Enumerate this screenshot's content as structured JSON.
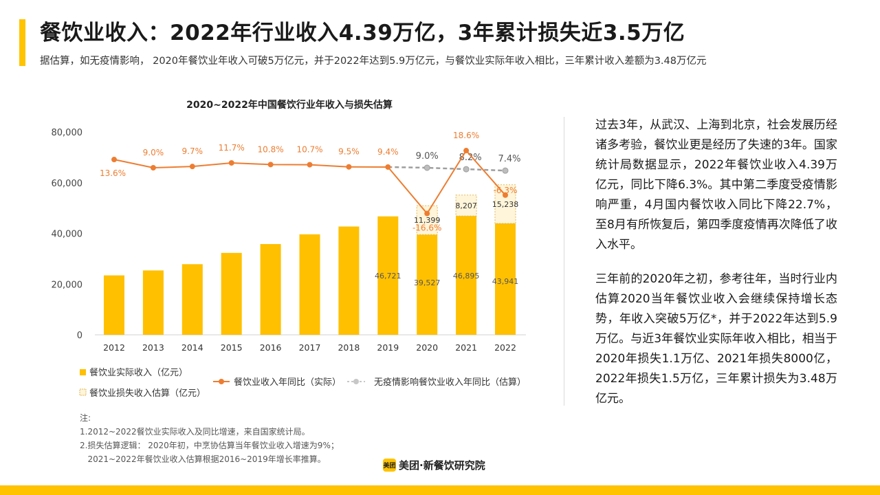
{
  "header": {
    "title": "餐饮业收入：2022年行业收入4.39万亿，3年累计损失近3.5万亿",
    "subtitle": "据估算，如无疫情影响， 2020年餐饮业年收入可破5万亿元，并于2022年达到5.9万亿元，与餐饮业实际年收入相比，三年累计收入差额为3.48万亿元"
  },
  "chart_data": {
    "type": "bar",
    "title": "2020~2022年中国餐饮行业年收入与损失估算",
    "categories": [
      "2012",
      "2013",
      "2014",
      "2015",
      "2016",
      "2017",
      "2018",
      "2019",
      "2020",
      "2021",
      "2022"
    ],
    "ylim": [
      0,
      80000
    ],
    "yticks": [
      0,
      20000,
      40000,
      60000,
      80000
    ],
    "ytick_labels": [
      "0",
      "20,000",
      "40,000",
      "60,000",
      "80,000"
    ],
    "series": [
      {
        "name": "餐饮业实际收入（亿元）",
        "kind": "bar",
        "values": [
          23448,
          25392,
          27860,
          32310,
          35799,
          39644,
          42716,
          46721,
          39527,
          46895,
          43941
        ],
        "data_labels": [
          "",
          "",
          "",
          "",
          "",
          "",
          "",
          "46,721",
          "39,527",
          "46,895",
          "43,941"
        ]
      },
      {
        "name": "餐饮业损失收入估算（亿元）",
        "kind": "stacked-bar",
        "values": [
          null,
          null,
          null,
          null,
          null,
          null,
          null,
          null,
          11399,
          8207,
          15238
        ],
        "data_labels": [
          "",
          "",
          "",
          "",
          "",
          "",
          "",
          "",
          "11,399",
          "8,207",
          "15,238"
        ]
      },
      {
        "name": "餐饮业收入年同比（实际）",
        "kind": "line",
        "values": [
          13.6,
          9.0,
          9.7,
          11.7,
          10.8,
          10.7,
          9.5,
          9.4,
          -16.6,
          18.6,
          -6.3
        ],
        "data_labels": [
          "13.6%",
          "9.0%",
          "9.7%",
          "11.7%",
          "10.8%",
          "10.7%",
          "9.5%",
          "9.4%",
          "-16.6%",
          "18.6%",
          "-6.3%"
        ]
      },
      {
        "name": "无疫情影响餐饮业收入年同比（估算）",
        "kind": "dashed-line",
        "values": [
          null,
          null,
          null,
          null,
          null,
          null,
          null,
          9.4,
          9.0,
          8.2,
          7.4
        ],
        "data_labels": [
          "",
          "",
          "",
          "",
          "",
          "",
          "",
          "",
          "9.0%",
          "8.2%",
          "7.4%"
        ]
      }
    ],
    "legend_position": "bottom",
    "grid": false
  },
  "colors": {
    "accent": "#FFC300",
    "bar": "#FFC000",
    "loss_fill": "#FFF5DA",
    "loss_stroke": "#E0B85A",
    "line_actual": "#ED7D31",
    "line_estimate": "#9E9E9E"
  },
  "side_text": {
    "p1": "过去3年，从武汉、上海到北京，社会发展历经诸多考验，餐饮业更是经历了失速的3年。国家统计局数据显示，2022年餐饮业收入4.39万亿元，同比下降6.3%。其中第二季度受疫情影响严重，4月国内餐饮收入同比下降22.7%，至8月有所恢复后，第四季度疫情再次降低了收入水平。",
    "p2": "三年前的2020年之初，参考往年，当时行业内估算2020当年餐饮业收入会继续保持增长态势，年收入突破5万亿*，并于2022年达到5.9万亿。与近3年餐饮业实际年收入相比，相当于2020年损失1.1万亿、2021年损失8000亿，2022年损失1.5万亿，三年累计损失为3.48万亿元。"
  },
  "notes": {
    "heading": "注:",
    "lines": [
      "1.2012~2022餐饮业实际收入及同比增速，来自国家统计局。",
      "2.损失估算逻辑： 2020年初，中烹协估算当年餐饮业收入增速为9%；",
      "   2021~2022年餐饮业收入估算根据2016~2019年增长率推算。"
    ]
  },
  "footer": {
    "logo_mark": "美团",
    "logo_text": "美团·新餐饮研究院"
  }
}
